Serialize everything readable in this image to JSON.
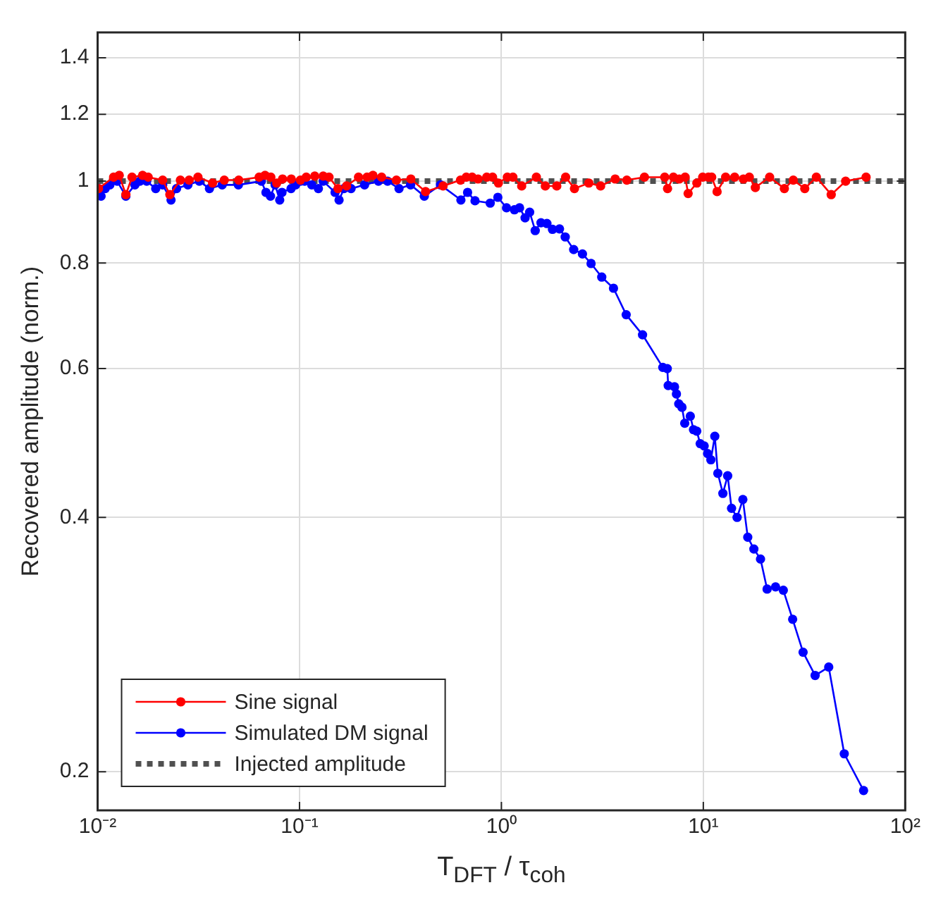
{
  "chart_data": {
    "type": "line",
    "xlabel": "T$_{DFT}$ / τ$_{coh}$",
    "ylabel": "Recovered amplitude (norm.)",
    "log": "xy",
    "xlim": [
      0.01,
      100
    ],
    "ylim": [
      0.18,
      1.5
    ],
    "xticks": [
      {
        "value": 0.01,
        "label": "10⁻²"
      },
      {
        "value": 0.1,
        "label": "10⁻¹"
      },
      {
        "value": 1,
        "label": "10⁰"
      },
      {
        "value": 10,
        "label": "10¹"
      },
      {
        "value": 100,
        "label": "10²"
      }
    ],
    "yticks": [
      0.2,
      0.4,
      0.6,
      0.8,
      1,
      1.2,
      1.4
    ],
    "grid": true,
    "legend": "bottom left",
    "marker": "circle",
    "line_style": "solid",
    "series": [
      {
        "name": "Sine signal",
        "color": "#ff0000",
        "x": [
          0.0101,
          0.012,
          0.0128,
          0.0138,
          0.0148,
          0.0167,
          0.0178,
          0.021,
          0.0228,
          0.0257,
          0.0284,
          0.0314,
          0.0371,
          0.0424,
          0.05,
          0.0631,
          0.0675,
          0.0721,
          0.0771,
          0.0824,
          0.091,
          0.101,
          0.108,
          0.119,
          0.131,
          0.14,
          0.155,
          0.171,
          0.196,
          0.216,
          0.231,
          0.255,
          0.302,
          0.356,
          0.421,
          0.514,
          0.627,
          0.67,
          0.716,
          0.766,
          0.846,
          0.904,
          0.966,
          1.07,
          1.14,
          1.26,
          1.49,
          1.65,
          1.88,
          2.08,
          2.3,
          2.71,
          3.1,
          3.66,
          4.18,
          5.11,
          6.44,
          6.65,
          7.11,
          7.6,
          8.13,
          8.41,
          9.29,
          9.93,
          10.6,
          11,
          11.7,
          12.9,
          14.3,
          15.8,
          16.9,
          18.1,
          21.3,
          25.2,
          27.9,
          31.8,
          36.3,
          43,
          50.7,
          64
        ],
        "values": [
          0.98,
          1.011,
          1.016,
          0.964,
          1.011,
          1.016,
          1.011,
          1.003,
          0.964,
          1.003,
          1.003,
          1.011,
          0.995,
          1.003,
          1.003,
          1.011,
          1.016,
          1.011,
          0.995,
          1.006,
          1.006,
          1.003,
          1.011,
          1.014,
          1.014,
          1.011,
          0.98,
          0.987,
          1.011,
          1.011,
          1.016,
          1.011,
          1.003,
          1.006,
          0.972,
          0.987,
          1.003,
          1.011,
          1.011,
          1.006,
          1.011,
          1.011,
          0.995,
          1.011,
          1.011,
          0.987,
          1.011,
          0.987,
          0.987,
          1.011,
          0.98,
          0.995,
          0.987,
          1.006,
          1.003,
          1.011,
          1.011,
          0.98,
          1.011,
          1.006,
          1.011,
          0.967,
          0.995,
          1.011,
          1.011,
          1.011,
          0.972,
          1.011,
          1.011,
          1.006,
          1.011,
          0.983,
          1.011,
          0.98,
          1.003,
          0.98,
          1.011,
          0.964,
          1,
          1.011
        ]
      },
      {
        "name": "Simulated DM signal",
        "color": "#0000ff",
        "x": [
          0.0101,
          0.0104,
          0.0109,
          0.0115,
          0.0125,
          0.0138,
          0.0153,
          0.0162,
          0.0175,
          0.0194,
          0.021,
          0.0231,
          0.0246,
          0.028,
          0.0319,
          0.0358,
          0.0414,
          0.0498,
          0.0647,
          0.0682,
          0.0718,
          0.0757,
          0.0798,
          0.0819,
          0.0908,
          0.0957,
          0.101,
          0.106,
          0.115,
          0.124,
          0.131,
          0.15,
          0.157,
          0.166,
          0.18,
          0.21,
          0.246,
          0.273,
          0.311,
          0.355,
          0.415,
          0.499,
          0.63,
          0.68,
          0.74,
          0.88,
          0.96,
          1.06,
          1.16,
          1.23,
          1.31,
          1.38,
          1.47,
          1.57,
          1.68,
          1.79,
          1.94,
          2.07,
          2.28,
          2.52,
          2.78,
          3.14,
          3.59,
          4.15,
          5,
          6.3,
          6.63,
          6.7,
          7.2,
          7.36,
          7.56,
          7.84,
          8.09,
          8.62,
          8.94,
          9.28,
          9.65,
          10.1,
          10.5,
          10.9,
          11.4,
          11.8,
          12.5,
          13.2,
          13.8,
          14.7,
          15.7,
          16.6,
          17.8,
          19.2,
          20.7,
          22.8,
          24.9,
          27.7,
          31.2,
          35.8,
          41.8,
          49.9,
          62.2
        ],
        "values": [
          0.98,
          0.96,
          0.98,
          0.99,
          1,
          0.96,
          0.99,
          1,
          1,
          0.98,
          0.99,
          0.95,
          0.98,
          0.99,
          1,
          0.98,
          0.99,
          0.99,
          1,
          0.97,
          0.96,
          0.99,
          0.95,
          0.97,
          0.98,
          0.99,
          1,
          1,
          0.99,
          0.98,
          1,
          0.97,
          0.95,
          0.98,
          0.98,
          0.99,
          1,
          1,
          0.98,
          0.99,
          0.96,
          0.99,
          0.95,
          0.97,
          0.948,
          0.942,
          0.957,
          0.93,
          0.925,
          0.93,
          0.905,
          0.919,
          0.874,
          0.893,
          0.891,
          0.877,
          0.878,
          0.859,
          0.83,
          0.82,
          0.799,
          0.77,
          0.747,
          0.695,
          0.658,
          0.602,
          0.6,
          0.573,
          0.571,
          0.56,
          0.545,
          0.54,
          0.517,
          0.527,
          0.508,
          0.506,
          0.489,
          0.486,
          0.476,
          0.468,
          0.499,
          0.451,
          0.427,
          0.448,
          0.41,
          0.4,
          0.42,
          0.379,
          0.367,
          0.357,
          0.329,
          0.331,
          0.328,
          0.303,
          0.277,
          0.26,
          0.266,
          0.21,
          0.19
        ]
      },
      {
        "name": "Injected amplitude",
        "color": "#505050",
        "x": [
          0.01,
          100
        ],
        "values": [
          1,
          1
        ],
        "marker": "none",
        "line_style": "dotted"
      }
    ]
  }
}
